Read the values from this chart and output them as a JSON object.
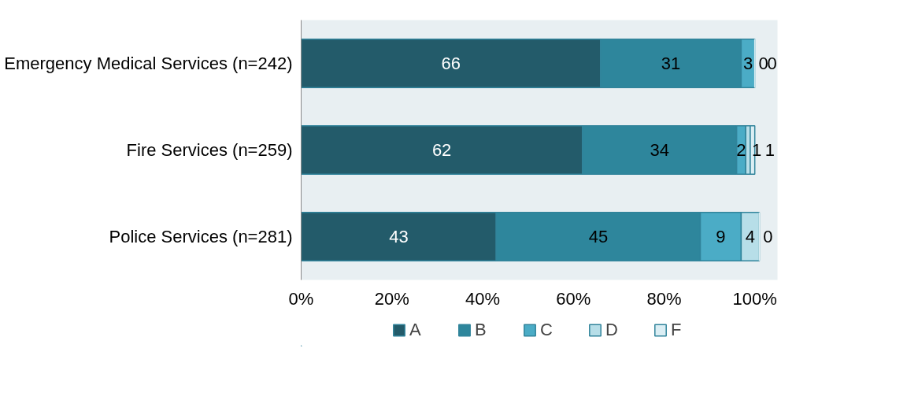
{
  "chart_data": {
    "type": "bar",
    "orientation": "horizontal",
    "stacked": true,
    "categories": [
      "Emergency Medical Services (n=242)",
      "Fire Services (n=259)",
      "Police Services (n=281)"
    ],
    "series": [
      {
        "name": "A",
        "color": "#235b6a",
        "values": [
          66,
          62,
          43
        ]
      },
      {
        "name": "B",
        "color": "#2e869c",
        "values": [
          31,
          34,
          45
        ]
      },
      {
        "name": "C",
        "color": "#4bacc6",
        "values": [
          3,
          2,
          9
        ]
      },
      {
        "name": "D",
        "color": "#b7dee8",
        "values": [
          0,
          1,
          4
        ]
      },
      {
        "name": "F",
        "color": "#dbeef4",
        "values": [
          0,
          1,
          0
        ]
      }
    ],
    "xlim": [
      0,
      105
    ],
    "xticks": [
      {
        "value": 0,
        "label": "0%"
      },
      {
        "value": 20,
        "label": "20%"
      },
      {
        "value": 40,
        "label": "40%"
      },
      {
        "value": 60,
        "label": "60%"
      },
      {
        "value": 80,
        "label": "80%"
      },
      {
        "value": 100,
        "label": "100%"
      }
    ],
    "data_labels": true,
    "grid": false,
    "legend": "bottom"
  }
}
